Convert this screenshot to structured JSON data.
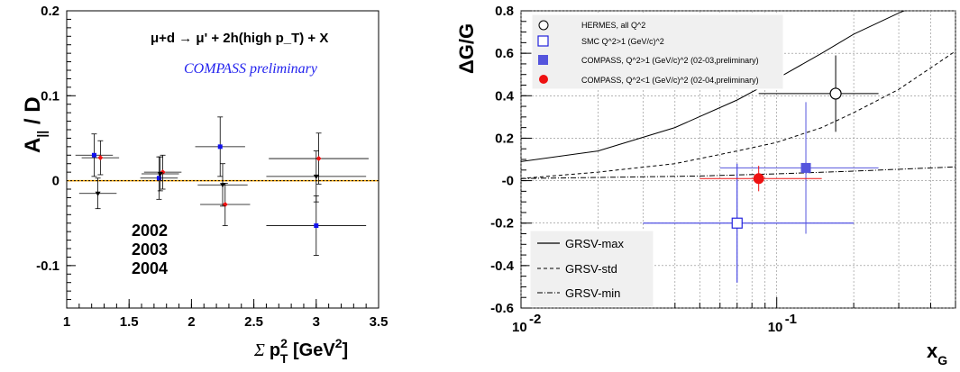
{
  "chart_data": [
    {
      "type": "scatter",
      "title": "",
      "xlabel": "Σ p_T^2 [GeV^2]",
      "ylabel": "A_|| / D",
      "xlim": [
        1,
        3.5
      ],
      "ylim": [
        -0.15,
        0.2
      ],
      "x_ticks": [
        "1",
        "1.5",
        "2",
        "2.5",
        "3",
        "3.5"
      ],
      "y_ticks": [
        "0.2",
        "0.1",
        "0",
        "-0.1"
      ],
      "process": "μ+d → μ' + 2h(high p_T) + X",
      "annotation": "COMPASS preliminary",
      "reference_line": 0,
      "series": [
        {
          "name": "2002",
          "color": "#1111ee",
          "points": [
            {
              "x": 1.22,
              "y": 0.03,
              "xerr": 0.15,
              "yerr": 0.025
            },
            {
              "x": 1.74,
              "y": 0.003,
              "xerr": 0.15,
              "yerr": 0.025
            },
            {
              "x": 2.23,
              "y": 0.04,
              "xerr": 0.2,
              "yerr": 0.035
            },
            {
              "x": 3.0,
              "y": -0.053,
              "xerr": 0.4,
              "yerr": 0.035
            }
          ]
        },
        {
          "name": "2003",
          "color": "#ee1111",
          "points": [
            {
              "x": 1.27,
              "y": 0.027,
              "xerr": 0.15,
              "yerr": 0.02
            },
            {
              "x": 1.77,
              "y": 0.01,
              "xerr": 0.15,
              "yerr": 0.02
            },
            {
              "x": 2.27,
              "y": -0.028,
              "xerr": 0.2,
              "yerr": 0.025
            },
            {
              "x": 3.02,
              "y": 0.026,
              "xerr": 0.4,
              "yerr": 0.03
            }
          ]
        },
        {
          "name": "2004",
          "color": "#000000",
          "points": [
            {
              "x": 1.25,
              "y": -0.015,
              "xerr": 0.15,
              "yerr": 0.018
            },
            {
              "x": 1.75,
              "y": 0.008,
              "xerr": 0.15,
              "yerr": 0.02
            },
            {
              "x": 2.25,
              "y": -0.005,
              "xerr": 0.2,
              "yerr": 0.025
            },
            {
              "x": 3.0,
              "y": 0.005,
              "xerr": 0.4,
              "yerr": 0.03
            }
          ]
        }
      ]
    },
    {
      "type": "scatter",
      "title": "",
      "xlabel": "x_G",
      "ylabel": "ΔG/G",
      "xscale": "log",
      "xlim": [
        0.01,
        0.5
      ],
      "ylim": [
        -0.6,
        0.8
      ],
      "x_ticks": [
        "10^-2",
        "10^-1"
      ],
      "y_ticks": [
        "0.8",
        "0.6",
        "0.4",
        "0.2",
        "-0",
        "-0.2",
        "-0.4",
        "-0.6"
      ],
      "grid": true,
      "points": [
        {
          "name": "HERMES, all Q^2",
          "marker": "open-circle",
          "color": "#000000",
          "x": 0.17,
          "y": 0.41,
          "xlo": 0.085,
          "xhi": 0.25,
          "ylo": 0.23,
          "yhi": 0.59
        },
        {
          "name": "SMC Q^2>1 (GeV/c)^2",
          "marker": "open-square",
          "color": "#2222dd",
          "x": 0.07,
          "y": -0.2,
          "xlo": 0.03,
          "xhi": 0.2,
          "ylo": -0.48,
          "yhi": 0.08
        },
        {
          "name": "COMPASS, Q^2>1 (GeV/c)^2 (02-03,preliminary)",
          "marker": "filled-square",
          "color": "#5555dd",
          "x": 0.13,
          "y": 0.06,
          "xlo": 0.06,
          "xhi": 0.25,
          "ylo": -0.25,
          "yhi": 0.37
        },
        {
          "name": "COMPASS, Q^2<1 (GeV/c)^2 (02-04,preliminary)",
          "marker": "filled-circle",
          "color": "#ee1111",
          "x": 0.085,
          "y": 0.01,
          "xlo": 0.05,
          "xhi": 0.15,
          "ylo": -0.05,
          "yhi": 0.07
        }
      ],
      "curves": [
        {
          "name": "GRSV-max",
          "style": "solid",
          "x": [
            0.01,
            0.02,
            0.04,
            0.07,
            0.1,
            0.15,
            0.2,
            0.3,
            0.4
          ],
          "y": [
            0.09,
            0.14,
            0.25,
            0.38,
            0.48,
            0.6,
            0.69,
            0.79,
            0.85
          ]
        },
        {
          "name": "GRSV-std",
          "style": "dashed",
          "x": [
            0.01,
            0.02,
            0.04,
            0.07,
            0.1,
            0.15,
            0.2,
            0.3,
            0.5
          ],
          "y": [
            0.01,
            0.04,
            0.08,
            0.14,
            0.18,
            0.25,
            0.32,
            0.43,
            0.61
          ]
        },
        {
          "name": "GRSV-min",
          "style": "dashdot",
          "x": [
            0.01,
            0.02,
            0.05,
            0.1,
            0.2,
            0.5
          ],
          "y": [
            0.01,
            0.015,
            0.022,
            0.032,
            0.045,
            0.065
          ]
        }
      ]
    }
  ]
}
